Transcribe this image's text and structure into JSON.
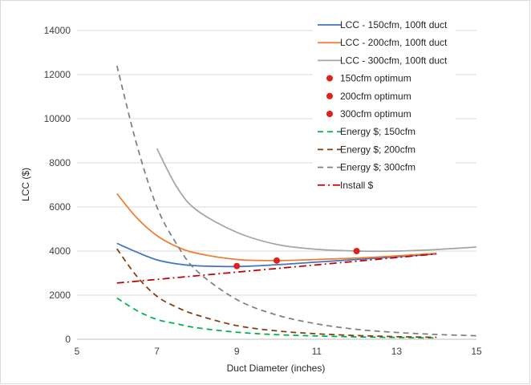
{
  "chart_data": {
    "type": "line",
    "title": "",
    "xlabel": "Duct Diameter (inches)",
    "ylabel": "LCC ($)",
    "xlim": [
      5,
      15
    ],
    "ylim": [
      0,
      14000
    ],
    "xticks": [
      5,
      7,
      9,
      11,
      13,
      15
    ],
    "yticks": [
      0,
      2000,
      4000,
      6000,
      8000,
      10000,
      12000,
      14000
    ],
    "grid": "horizontal",
    "legend": "right",
    "series": [
      {
        "name": "LCC - 150cfm, 100ft duct",
        "kind": "line",
        "color": "#4472c4",
        "dash": "solid",
        "x": [
          6,
          6.5,
          7,
          7.5,
          8,
          9,
          10,
          11,
          12,
          13,
          14
        ],
        "y": [
          4350,
          3950,
          3600,
          3420,
          3330,
          3300,
          3380,
          3500,
          3620,
          3740,
          3870
        ]
      },
      {
        "name": "LCC - 200cfm, 100ft duct",
        "kind": "line",
        "color": "#ed7d31",
        "dash": "solid",
        "x": [
          6,
          6.5,
          7,
          7.5,
          8,
          9,
          10,
          11,
          12,
          13,
          14
        ],
        "y": [
          6600,
          5500,
          4700,
          4200,
          3900,
          3620,
          3570,
          3620,
          3680,
          3780,
          3900
        ]
      },
      {
        "name": "LCC - 300cfm, 100ft duct",
        "kind": "line",
        "color": "#a5a5a5",
        "dash": "solid",
        "x": [
          7,
          7.5,
          8,
          9,
          10,
          11,
          12,
          13,
          14,
          15
        ],
        "y": [
          8650,
          6900,
          5850,
          4850,
          4300,
          4080,
          4000,
          4000,
          4070,
          4180
        ]
      },
      {
        "name": "150cfm optimum",
        "kind": "point",
        "color": "#e0201b",
        "x": [
          9
        ],
        "y": [
          3320
        ]
      },
      {
        "name": "200cfm optimum",
        "kind": "point",
        "color": "#e0201b",
        "x": [
          10
        ],
        "y": [
          3570
        ]
      },
      {
        "name": "300cfm optimum",
        "kind": "point",
        "color": "#e0201b",
        "x": [
          12
        ],
        "y": [
          4000
        ]
      },
      {
        "name": "Energy $; 150cfm",
        "kind": "line",
        "color": "#00b050",
        "dash": "dash",
        "x": [
          6,
          6.5,
          7,
          7.5,
          8,
          9,
          10,
          11,
          12,
          13,
          14
        ],
        "y": [
          1870,
          1300,
          900,
          700,
          520,
          320,
          210,
          150,
          110,
          80,
          60
        ]
      },
      {
        "name": "Energy $; 200cfm",
        "kind": "line",
        "color": "#843c0c",
        "dash": "dash",
        "x": [
          6,
          6.5,
          7,
          7.5,
          8,
          9,
          10,
          11,
          12,
          13,
          14
        ],
        "y": [
          4100,
          2850,
          1950,
          1450,
          1100,
          620,
          380,
          250,
          170,
          120,
          90
        ]
      },
      {
        "name": "Energy $; 300cfm",
        "kind": "line",
        "color": "#7f7f7f",
        "dash": "dash",
        "x": [
          6,
          6.5,
          7,
          7.5,
          8,
          9,
          10,
          11,
          12,
          13,
          14,
          15
        ],
        "y": [
          12400,
          8800,
          6000,
          4300,
          3100,
          1800,
          1100,
          700,
          450,
          310,
          220,
          160
        ]
      },
      {
        "name": "Install $",
        "kind": "line",
        "color": "#c00000",
        "dash": "dashdot",
        "x": [
          6,
          14
        ],
        "y": [
          2550,
          3870
        ]
      }
    ]
  }
}
